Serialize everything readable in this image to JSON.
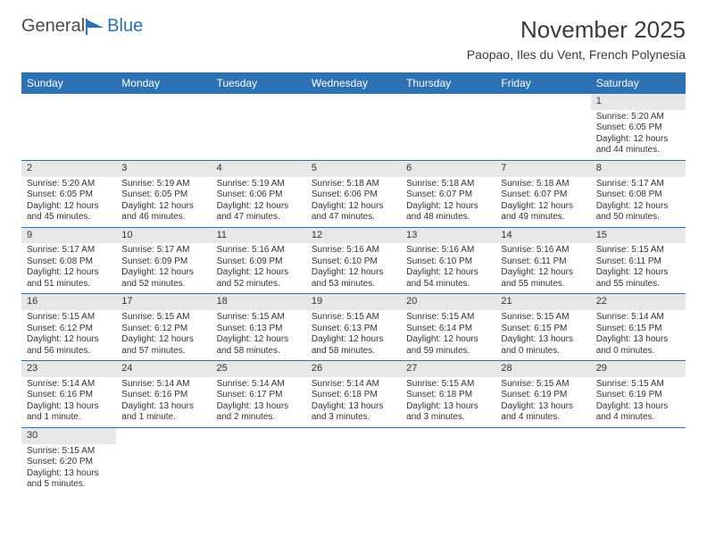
{
  "logo": {
    "text1": "General",
    "text2": "Blue"
  },
  "header": {
    "title": "November 2025",
    "location": "Paopao, Iles du Vent, French Polynesia"
  },
  "dayHeaders": [
    "Sunday",
    "Monday",
    "Tuesday",
    "Wednesday",
    "Thursday",
    "Friday",
    "Saturday"
  ],
  "weeks": [
    [
      null,
      null,
      null,
      null,
      null,
      null,
      {
        "n": "1",
        "sr": "Sunrise: 5:20 AM",
        "ss": "Sunset: 6:05 PM",
        "dl1": "Daylight: 12 hours",
        "dl2": "and 44 minutes."
      }
    ],
    [
      {
        "n": "2",
        "sr": "Sunrise: 5:20 AM",
        "ss": "Sunset: 6:05 PM",
        "dl1": "Daylight: 12 hours",
        "dl2": "and 45 minutes."
      },
      {
        "n": "3",
        "sr": "Sunrise: 5:19 AM",
        "ss": "Sunset: 6:05 PM",
        "dl1": "Daylight: 12 hours",
        "dl2": "and 46 minutes."
      },
      {
        "n": "4",
        "sr": "Sunrise: 5:19 AM",
        "ss": "Sunset: 6:06 PM",
        "dl1": "Daylight: 12 hours",
        "dl2": "and 47 minutes."
      },
      {
        "n": "5",
        "sr": "Sunrise: 5:18 AM",
        "ss": "Sunset: 6:06 PM",
        "dl1": "Daylight: 12 hours",
        "dl2": "and 47 minutes."
      },
      {
        "n": "6",
        "sr": "Sunrise: 5:18 AM",
        "ss": "Sunset: 6:07 PM",
        "dl1": "Daylight: 12 hours",
        "dl2": "and 48 minutes."
      },
      {
        "n": "7",
        "sr": "Sunrise: 5:18 AM",
        "ss": "Sunset: 6:07 PM",
        "dl1": "Daylight: 12 hours",
        "dl2": "and 49 minutes."
      },
      {
        "n": "8",
        "sr": "Sunrise: 5:17 AM",
        "ss": "Sunset: 6:08 PM",
        "dl1": "Daylight: 12 hours",
        "dl2": "and 50 minutes."
      }
    ],
    [
      {
        "n": "9",
        "sr": "Sunrise: 5:17 AM",
        "ss": "Sunset: 6:08 PM",
        "dl1": "Daylight: 12 hours",
        "dl2": "and 51 minutes."
      },
      {
        "n": "10",
        "sr": "Sunrise: 5:17 AM",
        "ss": "Sunset: 6:09 PM",
        "dl1": "Daylight: 12 hours",
        "dl2": "and 52 minutes."
      },
      {
        "n": "11",
        "sr": "Sunrise: 5:16 AM",
        "ss": "Sunset: 6:09 PM",
        "dl1": "Daylight: 12 hours",
        "dl2": "and 52 minutes."
      },
      {
        "n": "12",
        "sr": "Sunrise: 5:16 AM",
        "ss": "Sunset: 6:10 PM",
        "dl1": "Daylight: 12 hours",
        "dl2": "and 53 minutes."
      },
      {
        "n": "13",
        "sr": "Sunrise: 5:16 AM",
        "ss": "Sunset: 6:10 PM",
        "dl1": "Daylight: 12 hours",
        "dl2": "and 54 minutes."
      },
      {
        "n": "14",
        "sr": "Sunrise: 5:16 AM",
        "ss": "Sunset: 6:11 PM",
        "dl1": "Daylight: 12 hours",
        "dl2": "and 55 minutes."
      },
      {
        "n": "15",
        "sr": "Sunrise: 5:15 AM",
        "ss": "Sunset: 6:11 PM",
        "dl1": "Daylight: 12 hours",
        "dl2": "and 55 minutes."
      }
    ],
    [
      {
        "n": "16",
        "sr": "Sunrise: 5:15 AM",
        "ss": "Sunset: 6:12 PM",
        "dl1": "Daylight: 12 hours",
        "dl2": "and 56 minutes."
      },
      {
        "n": "17",
        "sr": "Sunrise: 5:15 AM",
        "ss": "Sunset: 6:12 PM",
        "dl1": "Daylight: 12 hours",
        "dl2": "and 57 minutes."
      },
      {
        "n": "18",
        "sr": "Sunrise: 5:15 AM",
        "ss": "Sunset: 6:13 PM",
        "dl1": "Daylight: 12 hours",
        "dl2": "and 58 minutes."
      },
      {
        "n": "19",
        "sr": "Sunrise: 5:15 AM",
        "ss": "Sunset: 6:13 PM",
        "dl1": "Daylight: 12 hours",
        "dl2": "and 58 minutes."
      },
      {
        "n": "20",
        "sr": "Sunrise: 5:15 AM",
        "ss": "Sunset: 6:14 PM",
        "dl1": "Daylight: 12 hours",
        "dl2": "and 59 minutes."
      },
      {
        "n": "21",
        "sr": "Sunrise: 5:15 AM",
        "ss": "Sunset: 6:15 PM",
        "dl1": "Daylight: 13 hours",
        "dl2": "and 0 minutes."
      },
      {
        "n": "22",
        "sr": "Sunrise: 5:14 AM",
        "ss": "Sunset: 6:15 PM",
        "dl1": "Daylight: 13 hours",
        "dl2": "and 0 minutes."
      }
    ],
    [
      {
        "n": "23",
        "sr": "Sunrise: 5:14 AM",
        "ss": "Sunset: 6:16 PM",
        "dl1": "Daylight: 13 hours",
        "dl2": "and 1 minute."
      },
      {
        "n": "24",
        "sr": "Sunrise: 5:14 AM",
        "ss": "Sunset: 6:16 PM",
        "dl1": "Daylight: 13 hours",
        "dl2": "and 1 minute."
      },
      {
        "n": "25",
        "sr": "Sunrise: 5:14 AM",
        "ss": "Sunset: 6:17 PM",
        "dl1": "Daylight: 13 hours",
        "dl2": "and 2 minutes."
      },
      {
        "n": "26",
        "sr": "Sunrise: 5:14 AM",
        "ss": "Sunset: 6:18 PM",
        "dl1": "Daylight: 13 hours",
        "dl2": "and 3 minutes."
      },
      {
        "n": "27",
        "sr": "Sunrise: 5:15 AM",
        "ss": "Sunset: 6:18 PM",
        "dl1": "Daylight: 13 hours",
        "dl2": "and 3 minutes."
      },
      {
        "n": "28",
        "sr": "Sunrise: 5:15 AM",
        "ss": "Sunset: 6:19 PM",
        "dl1": "Daylight: 13 hours",
        "dl2": "and 4 minutes."
      },
      {
        "n": "29",
        "sr": "Sunrise: 5:15 AM",
        "ss": "Sunset: 6:19 PM",
        "dl1": "Daylight: 13 hours",
        "dl2": "and 4 minutes."
      }
    ],
    [
      {
        "n": "30",
        "sr": "Sunrise: 5:15 AM",
        "ss": "Sunset: 6:20 PM",
        "dl1": "Daylight: 13 hours",
        "dl2": "and 5 minutes."
      },
      null,
      null,
      null,
      null,
      null,
      null
    ]
  ]
}
